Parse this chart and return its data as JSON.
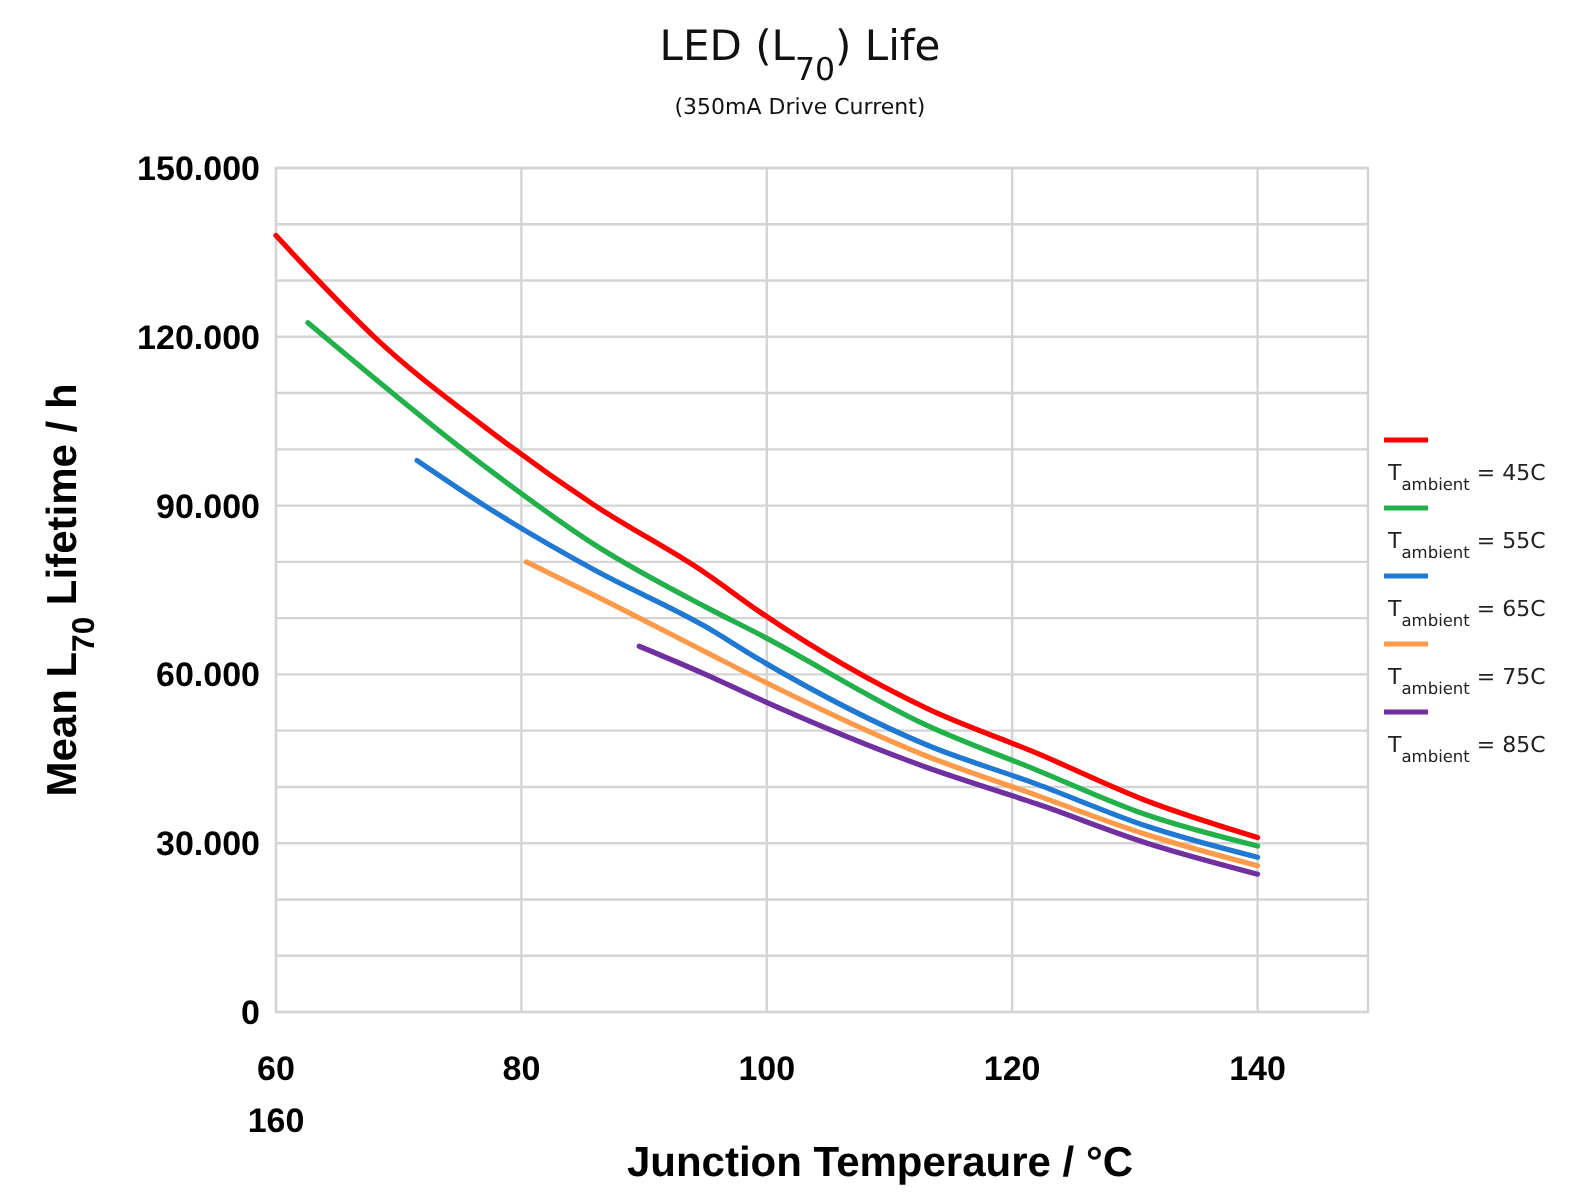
{
  "chart_data": {
    "type": "line",
    "title": "LED (L$_{70}$) Life",
    "subtitle": "(350mA Drive Current)",
    "xlabel": "Junction Temperaure / °C",
    "ylabel": "Mean L$_{70}$ Lifetime / h",
    "annotations": [
      "160"
    ],
    "xlim": [
      60,
      149
    ],
    "xticks": [
      60,
      80,
      100,
      120,
      140
    ],
    "ylim": [
      0,
      150000
    ],
    "yticks": [
      {
        "value": 0,
        "label": "0"
      },
      {
        "value": 10000,
        "label": null
      },
      {
        "value": 20000,
        "label": null
      },
      {
        "value": 30000,
        "label": "30.000"
      },
      {
        "value": 40000,
        "label": null
      },
      {
        "value": 50000,
        "label": null
      },
      {
        "value": 60000,
        "label": "60.000"
      },
      {
        "value": 70000,
        "label": null
      },
      {
        "value": 80000,
        "label": null
      },
      {
        "value": 90000,
        "label": "90.000"
      },
      {
        "value": 100000,
        "label": null
      },
      {
        "value": 110000,
        "label": null
      },
      {
        "value": 120000,
        "label": "120.000"
      },
      {
        "value": 130000,
        "label": null
      },
      {
        "value": 140000,
        "label": null
      },
      {
        "value": 150000,
        "label": "150.000"
      }
    ],
    "grid": true,
    "legend": "right",
    "marker": "none",
    "line_style": "solid",
    "series": [
      {
        "name": "T$_{ambient}$ = 45C",
        "color": "#ff0000",
        "x": [
          60,
          63,
          68,
          77,
          86,
          95,
          99.5,
          113,
          122,
          131,
          140
        ],
        "values": [
          138000,
          131000,
          120000,
          104000,
          90000,
          78000,
          71000,
          54000,
          46000,
          37500,
          31000
        ]
      },
      {
        "name": "T$_{ambient}$ = 55C",
        "color": "#22b04a",
        "x": [
          62.6,
          77,
          86,
          95,
          99.5,
          113,
          122,
          131,
          140
        ],
        "values": [
          122500,
          97000,
          83000,
          72000,
          67000,
          51000,
          43000,
          35000,
          29500
        ]
      },
      {
        "name": "T$_{ambient}$ = 65C",
        "color": "#1f78d1",
        "x": [
          71.5,
          77,
          86,
          95,
          99.5,
          113,
          122,
          131,
          140
        ],
        "values": [
          98000,
          90000,
          78500,
          68500,
          62500,
          47500,
          40500,
          33000,
          27500
        ]
      },
      {
        "name": "T$_{ambient}$ = 75C",
        "color": "#ff9a4a",
        "x": [
          80.4,
          86,
          95,
          99.5,
          113,
          122,
          131,
          140
        ],
        "values": [
          80000,
          74000,
          64000,
          59000,
          45500,
          38500,
          31500,
          26000
        ]
      },
      {
        "name": "T$_{ambient}$ = 85C",
        "color": "#7030a0",
        "x": [
          89.6,
          95,
          99.5,
          113,
          122,
          131,
          140
        ],
        "values": [
          65000,
          60000,
          55500,
          43500,
          37000,
          30000,
          24500
        ]
      }
    ]
  }
}
